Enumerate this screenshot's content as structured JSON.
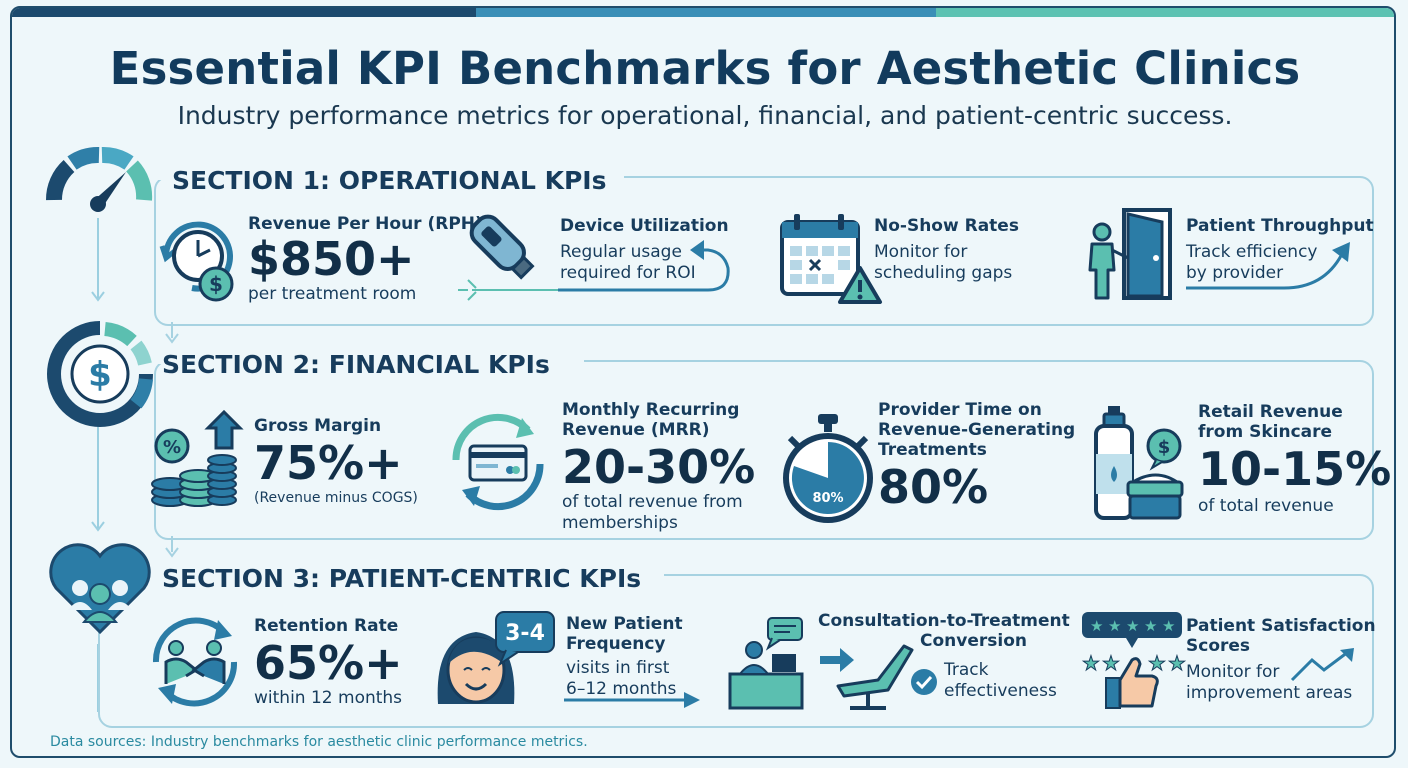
{
  "title": "Essential KPI Benchmarks for Aesthetic Clinics",
  "subtitle": "Industry performance metrics for operational, financial, and patient-centric success.",
  "colors": {
    "navy": "#123b5d",
    "blue": "#2b7ca6",
    "teal": "#5bbfb0",
    "accent": "#4aa8c4"
  },
  "sections": [
    {
      "title": "SECTION 1: OPERATIONAL KPIs",
      "icon": "gauge-icon",
      "kpis": [
        {
          "label": "Revenue Per Hour (RPH)",
          "value": "$850+",
          "desc": "per treatment room",
          "icon": "clock-dollar-icon"
        },
        {
          "label": "Device Utilization",
          "desc_lines": [
            "Regular usage",
            "required for ROI"
          ],
          "icon": "laser-device-icon"
        },
        {
          "label": "No-Show Rates",
          "desc_lines": [
            "Monitor for",
            "scheduling gaps"
          ],
          "icon": "calendar-warning-icon"
        },
        {
          "label": "Patient Throughput",
          "desc_lines": [
            "Track efficiency",
            "by provider"
          ],
          "icon": "door-person-icon"
        }
      ]
    },
    {
      "title": "SECTION 2: FINANCIAL KPIs",
      "icon": "dollar-ring-icon",
      "kpis": [
        {
          "label": "Gross Margin",
          "value": "75%+",
          "desc": "(Revenue minus COGS)",
          "icon": "coin-stacks-icon"
        },
        {
          "label_lines": [
            "Monthly Recurring",
            "Revenue (MRR)"
          ],
          "value": "20-30%",
          "desc_lines": [
            "of total revenue from",
            "memberships"
          ],
          "icon": "card-cycle-icon"
        },
        {
          "label_lines": [
            "Provider Time on",
            "Revenue-Generating",
            "Treatments"
          ],
          "value": "80%",
          "badge": "80%",
          "icon": "stopwatch-icon"
        },
        {
          "label_lines": [
            "Retail Revenue",
            "from Skincare"
          ],
          "value": "10-15%",
          "desc": "of total revenue",
          "icon": "skincare-products-icon"
        }
      ]
    },
    {
      "title": "SECTION 3: PATIENT-CENTRIC KPIs",
      "icon": "heart-people-icon",
      "kpis": [
        {
          "label": "Retention Rate",
          "value": "65%+",
          "desc": "within 12 months",
          "icon": "handshake-cycle-icon"
        },
        {
          "label_lines": [
            "New Patient",
            "Frequency"
          ],
          "bubble": "3-4",
          "desc_lines": [
            "visits in first",
            "6–12 months"
          ],
          "icon": "smiling-patient-icon"
        },
        {
          "label_lines": [
            "Consultation-to-Treatment",
            "Conversion"
          ],
          "desc_lines": [
            "Track",
            "effectiveness"
          ],
          "icon": "consult-chair-icon"
        },
        {
          "label_lines": [
            "Patient Satisfaction",
            "Scores"
          ],
          "desc_lines": [
            "Monitor for",
            "improvement areas"
          ],
          "icon": "stars-thumbs-up-icon"
        }
      ]
    }
  ],
  "source": "Data sources: Industry benchmarks for aesthetic clinic performance metrics."
}
